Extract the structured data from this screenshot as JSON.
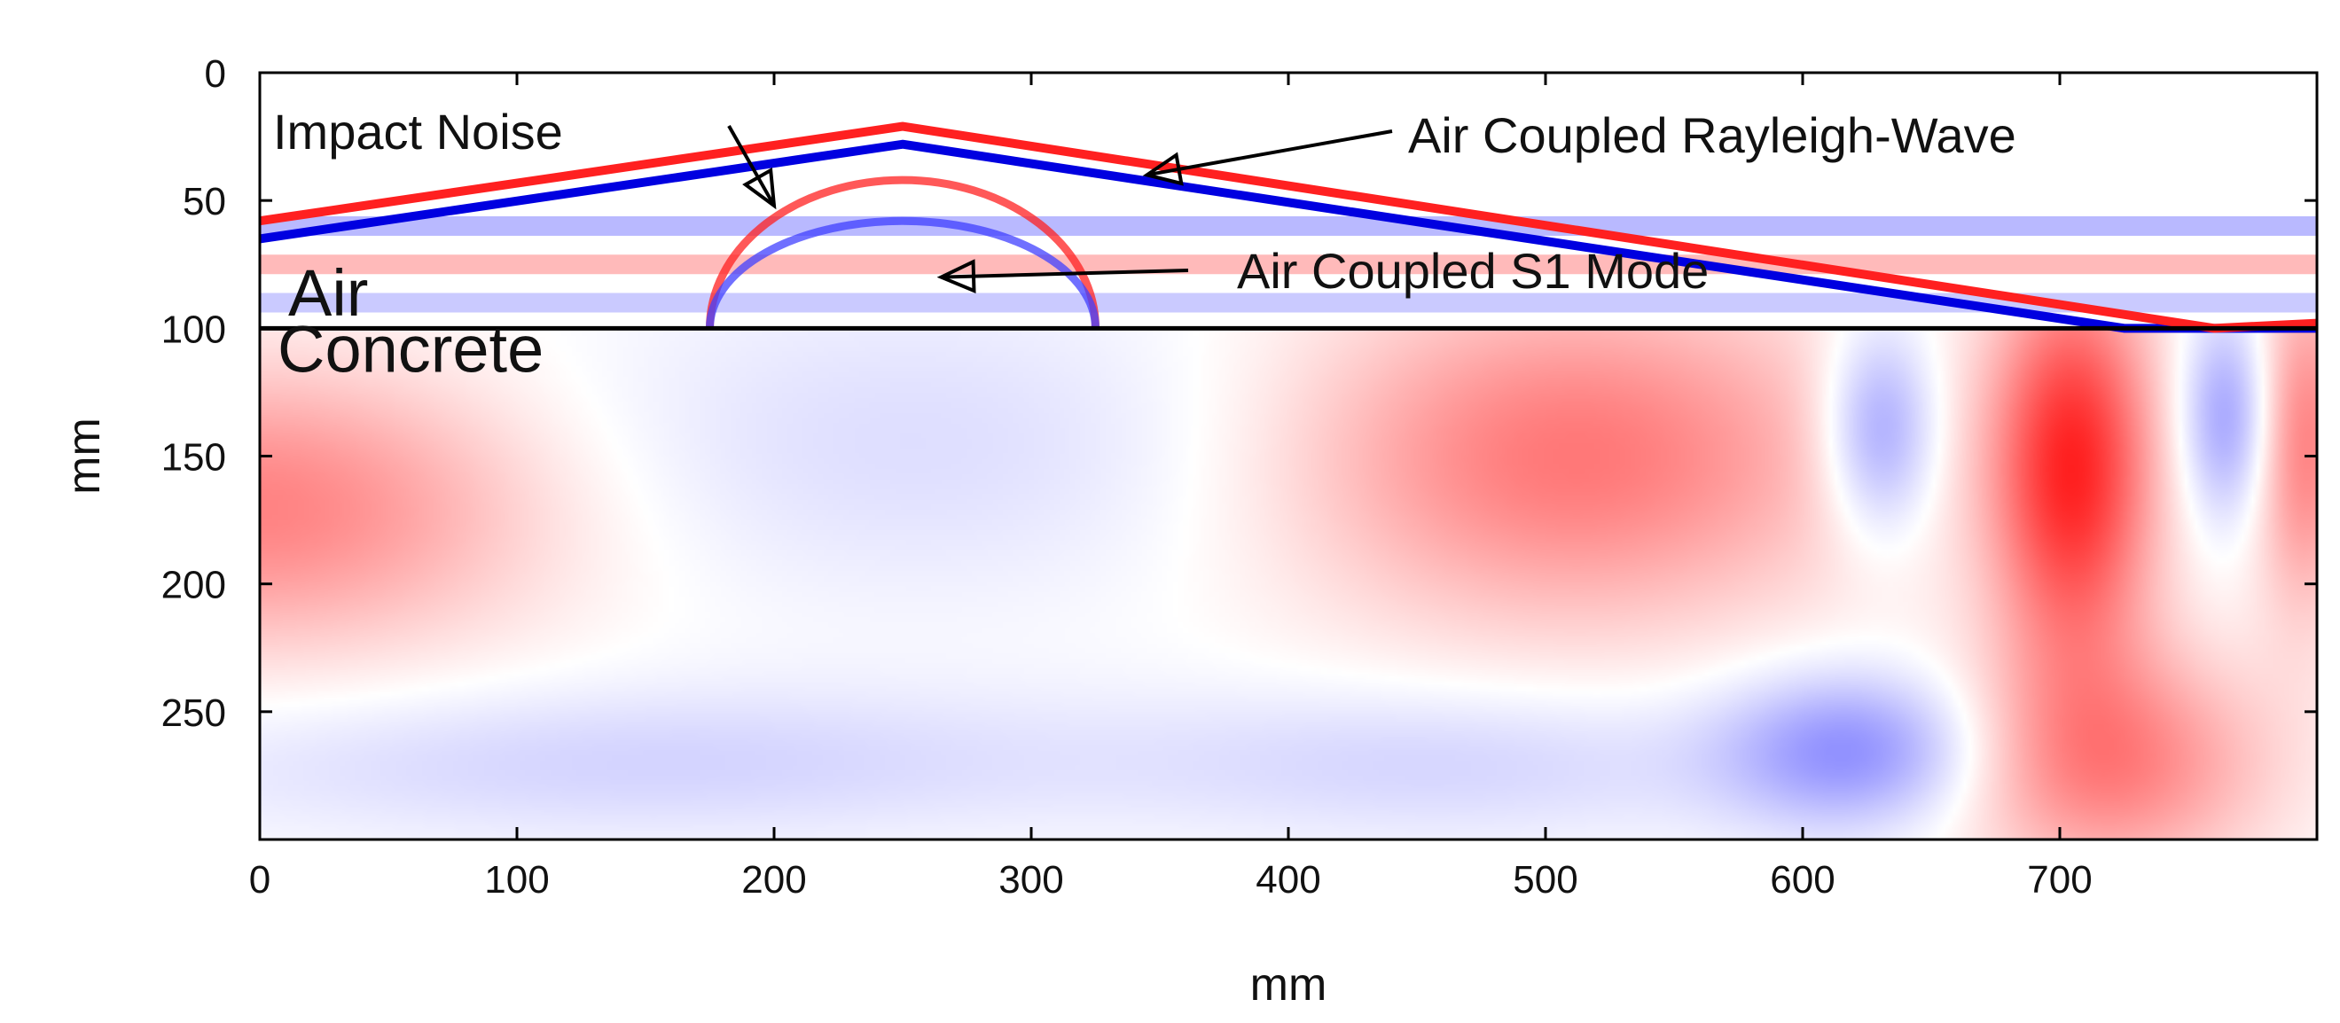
{
  "chart_data": {
    "type": "heatmap",
    "colormap": {
      "negative": "#3a3aff",
      "zero": "#ffffff",
      "positive": "#ff1a1a"
    },
    "x_axis": {
      "label": "mm",
      "lim": [
        0,
        800
      ],
      "ticks": [
        0,
        100,
        200,
        300,
        400,
        500,
        600,
        700
      ]
    },
    "y_axis": {
      "label": "mm",
      "lim": [
        0,
        300
      ],
      "inverted": true,
      "ticks": [
        0,
        50,
        100,
        150,
        200,
        250
      ]
    },
    "interface_depth": 100,
    "regions": [
      {
        "name": "Air",
        "y_range": [
          0,
          100
        ]
      },
      {
        "name": "Concrete",
        "y_range": [
          100,
          300
        ]
      }
    ],
    "wavefronts": [
      {
        "name": "Air Coupled Rayleigh-Wave",
        "color": "#0000e0",
        "x": [
          0,
          250,
          725,
          800
        ],
        "y": [
          65,
          28,
          100,
          100
        ]
      },
      {
        "name": "Air Coupled Rayleigh-Wave",
        "color": "#ff2020",
        "x": [
          0,
          250,
          760,
          800
        ],
        "y": [
          58,
          21,
          100,
          98
        ]
      },
      {
        "name": "Impact Noise",
        "color": "#ff2020",
        "center": [
          250,
          100
        ],
        "radius_x": 75,
        "radius_y": 58
      },
      {
        "name": "Impact Noise",
        "color": "#4040ff",
        "center": [
          250,
          100
        ],
        "radius_x": 75,
        "radius_y": 42
      }
    ],
    "concrete_field": [
      {
        "x": 0,
        "y": 170,
        "sx": 110,
        "sy": 55,
        "amp": 0.55
      },
      {
        "x": 255,
        "y": 145,
        "sx": 150,
        "sy": 60,
        "amp": -0.17
      },
      {
        "x": 510,
        "y": 150,
        "sx": 110,
        "sy": 65,
        "amp": 0.6
      },
      {
        "x": 630,
        "y": 140,
        "sx": 22,
        "sy": 40,
        "amp": -0.55
      },
      {
        "x": 705,
        "y": 155,
        "sx": 32,
        "sy": 75,
        "amp": 0.95
      },
      {
        "x": 765,
        "y": 135,
        "sx": 18,
        "sy": 40,
        "amp": -0.5
      },
      {
        "x": 795,
        "y": 145,
        "sx": 20,
        "sy": 65,
        "amp": 0.55
      },
      {
        "x": 150,
        "y": 270,
        "sx": 200,
        "sy": 30,
        "amp": -0.22
      },
      {
        "x": 470,
        "y": 270,
        "sx": 120,
        "sy": 30,
        "amp": -0.2
      },
      {
        "x": 620,
        "y": 265,
        "sx": 50,
        "sy": 30,
        "amp": -0.55
      },
      {
        "x": 720,
        "y": 270,
        "sx": 60,
        "sy": 45,
        "amp": 0.55
      }
    ],
    "air_bands": [
      {
        "y": 60,
        "amp": -0.2
      },
      {
        "y": 75,
        "amp": 0.18
      },
      {
        "y": 90,
        "amp": -0.15
      }
    ],
    "annotations": [
      {
        "text": "Impact Noise",
        "target": [
          200,
          52
        ]
      },
      {
        "text": "Air Coupled Rayleigh-Wave",
        "target": [
          345,
          40
        ]
      },
      {
        "text": "Air Coupled S1 Mode",
        "target": [
          265,
          80
        ]
      }
    ]
  }
}
